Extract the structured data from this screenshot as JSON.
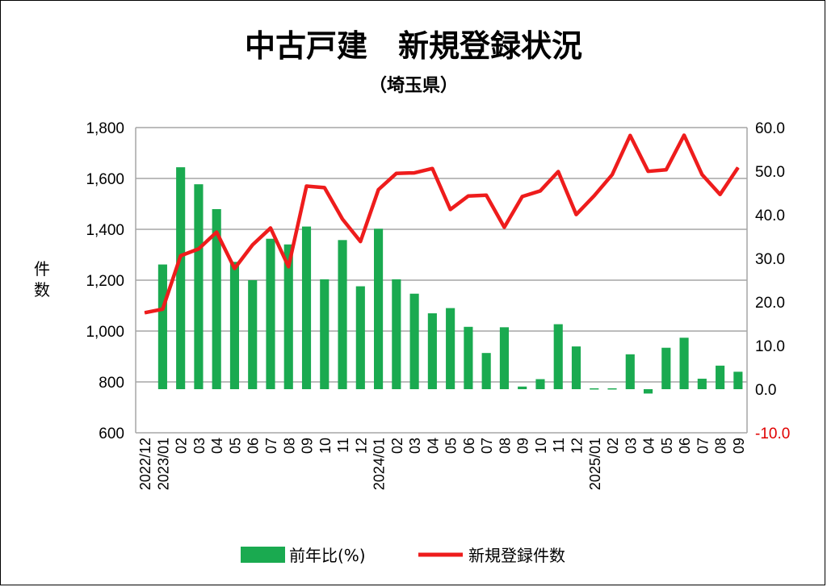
{
  "chart_data": {
    "type": "bar+line",
    "title": "中古戸建　新規登録状況",
    "subtitle": "（埼玉県）",
    "ylabel_left": "件数",
    "ylabel_right": "",
    "categories": [
      "2022/12",
      "2023/01",
      "02",
      "03",
      "04",
      "05",
      "06",
      "07",
      "08",
      "09",
      "10",
      "11",
      "12",
      "2024/01",
      "02",
      "03",
      "04",
      "05",
      "06",
      "07",
      "08",
      "09",
      "10",
      "11",
      "12",
      "2025/01",
      "02",
      "03",
      "04",
      "05",
      "06",
      "07",
      "08",
      "09"
    ],
    "ylim_left": [
      600,
      1800
    ],
    "yticks_left": [
      "600",
      "800",
      "1,000",
      "1,200",
      "1,400",
      "1,600",
      "1,800"
    ],
    "yticks_left_values": [
      600,
      800,
      1000,
      1200,
      1400,
      1600,
      1800
    ],
    "ylim_right": [
      -10,
      60
    ],
    "yticks_right": [
      "-10.0",
      "0.0",
      "10.0",
      "20.0",
      "30.0",
      "40.0",
      "50.0",
      "60.0"
    ],
    "yticks_right_values": [
      -10,
      0,
      10,
      20,
      30,
      40,
      50,
      60
    ],
    "grid": true,
    "legend_position": "bottom",
    "series": [
      {
        "name": "前年比(%)",
        "type": "bar",
        "axis": "right",
        "color": "#1aaa50",
        "values": [
          null,
          28.6,
          50.9,
          47.0,
          41.3,
          29.2,
          25.0,
          34.5,
          33.2,
          37.3,
          25.2,
          34.2,
          23.6,
          36.8,
          25.2,
          21.9,
          17.4,
          18.6,
          14.3,
          8.3,
          14.2,
          0.6,
          2.3,
          14.9,
          9.8,
          0.2,
          0.2,
          8.0,
          -1.0,
          9.5,
          11.8,
          2.4,
          5.4,
          4.0
        ]
      },
      {
        "name": "新規登録件数",
        "type": "line",
        "axis": "left",
        "color": "#ee1c1c",
        "values": [
          1072,
          1086,
          1296,
          1323,
          1389,
          1246,
          1339,
          1405,
          1253,
          1570,
          1564,
          1440,
          1352,
          1556,
          1620,
          1622,
          1639,
          1478,
          1531,
          1534,
          1408,
          1529,
          1551,
          1627,
          1458,
          1532,
          1615,
          1769,
          1628,
          1634,
          1770,
          1615,
          1537,
          1643
        ]
      }
    ]
  },
  "legend": {
    "bar_label": "前年比(%)",
    "line_label": "新規登録件数"
  },
  "colors": {
    "bar": "#1aaa50",
    "line": "#ee1c1c",
    "negative_tick": "#e00000",
    "grid": "#a6a6a6"
  }
}
